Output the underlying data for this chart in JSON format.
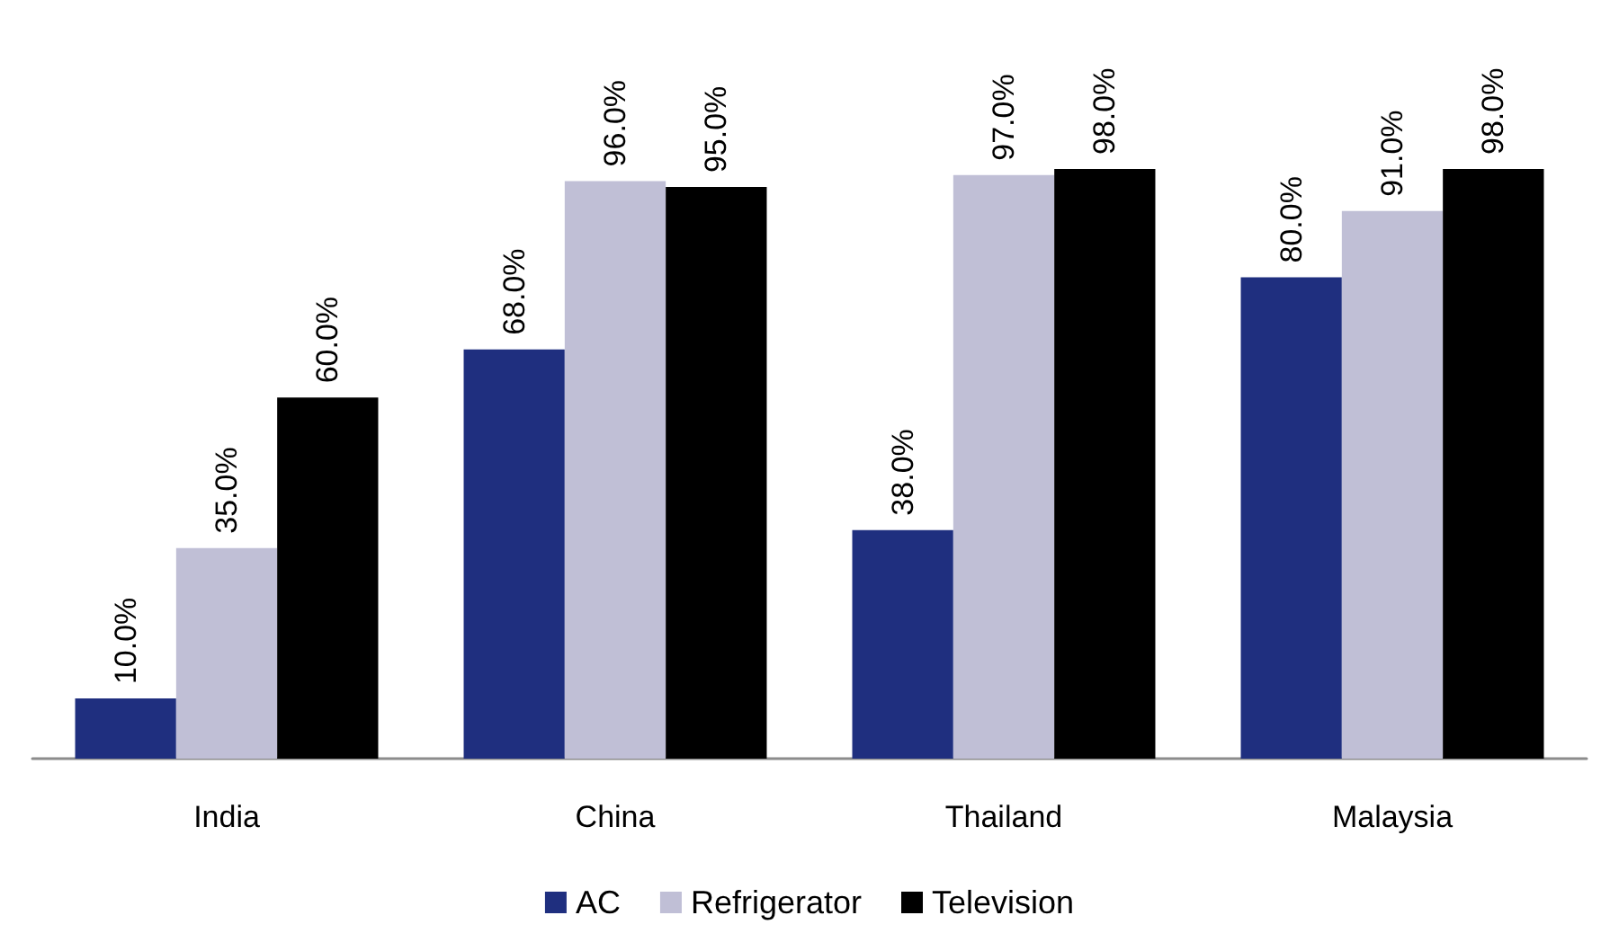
{
  "chart_data": {
    "type": "bar",
    "categories": [
      "India",
      "China",
      "Thailand",
      "Malaysia"
    ],
    "series": [
      {
        "name": "AC",
        "color": "#1f2f7f",
        "values": [
          10,
          68,
          38,
          80
        ],
        "value_labels": [
          "10.0%",
          "68.0%",
          "38.0%",
          "80.0%"
        ]
      },
      {
        "name": "Refrigerator",
        "color": "#c0bfd6",
        "values": [
          35,
          96,
          97,
          91
        ],
        "value_labels": [
          "35.0%",
          "96.0%",
          "97.0%",
          "91.0%"
        ]
      },
      {
        "name": "Television",
        "color": "#000000",
        "values": [
          60,
          95,
          98,
          98
        ],
        "value_labels": [
          "60.0%",
          "95.0%",
          "98.0%",
          "98.0%"
        ]
      }
    ],
    "grid": false,
    "legend": "bottom"
  }
}
